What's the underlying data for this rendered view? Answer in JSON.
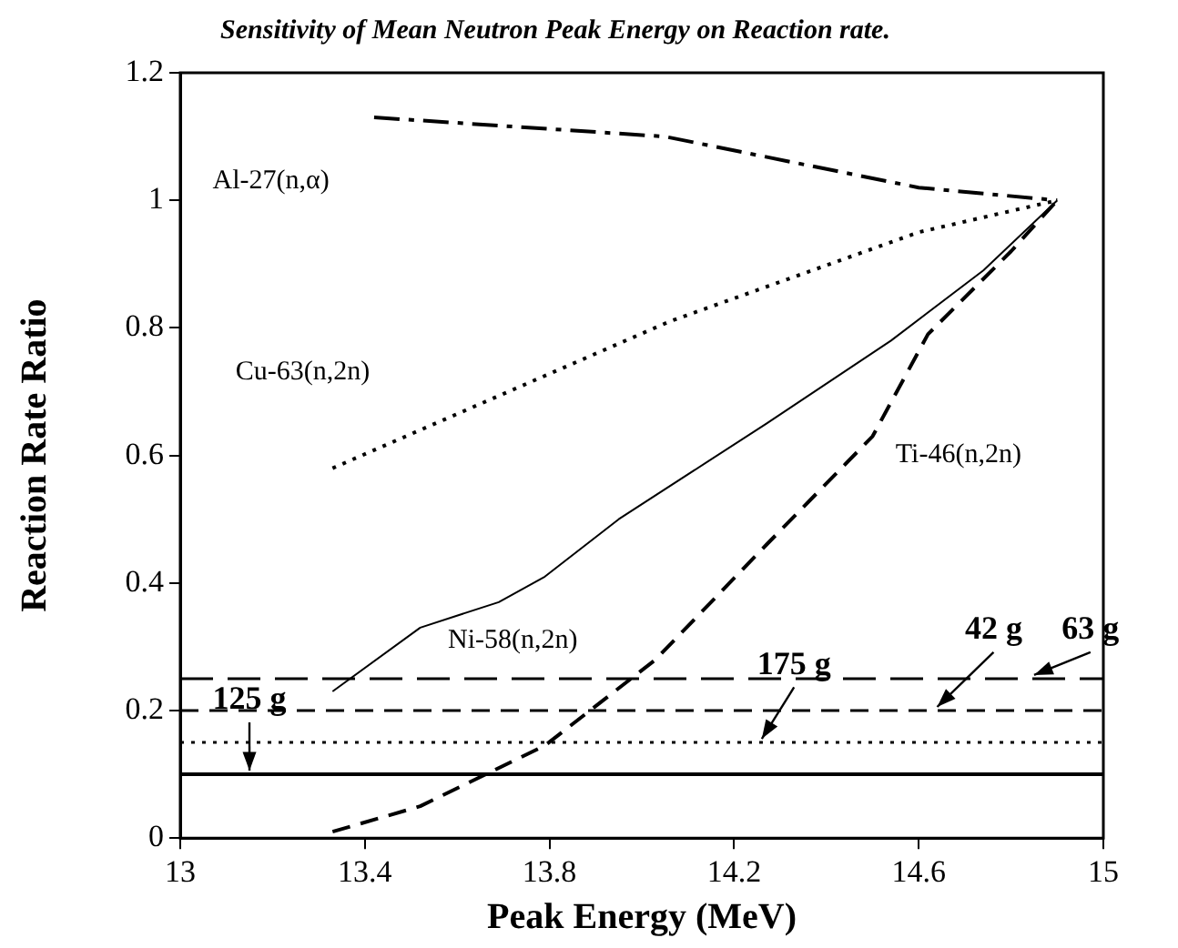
{
  "chart_data": {
    "type": "line",
    "title": "Sensitivity of Mean Neutron Peak Energy on Reaction rate.",
    "xlabel": "Peak Energy (MeV)",
    "ylabel": "Reaction Rate Ratio",
    "xlim": [
      13,
      15
    ],
    "xticks": [
      13,
      13.4,
      13.8,
      14.2,
      14.6,
      15
    ],
    "ylim": [
      0,
      1.2
    ],
    "yticks": [
      0,
      0.2,
      0.4,
      0.6,
      0.8,
      1,
      1.2
    ],
    "grid": false,
    "legend": false,
    "marker": "none",
    "series": [
      {
        "name": "Al-27(n,α)",
        "color": "#000000",
        "line_style": "dashdot",
        "x": [
          13.42,
          14.05,
          14.6,
          14.9
        ],
        "values": [
          1.13,
          1.1,
          1.02,
          1.0
        ]
      },
      {
        "name": "Cu-63(n,2n)",
        "color": "#000000",
        "line_style": "dotted",
        "x": [
          13.33,
          14.06,
          14.6,
          14.9
        ],
        "values": [
          0.58,
          0.81,
          0.95,
          1.0
        ]
      },
      {
        "name": "Ni-58(n,2n)",
        "color": "#000000",
        "line_style": "solid",
        "x": [
          13.33,
          13.52,
          13.69,
          13.79,
          13.95,
          14.27,
          14.54,
          14.74,
          14.9
        ],
        "values": [
          0.23,
          0.33,
          0.37,
          0.41,
          0.5,
          0.65,
          0.78,
          0.89,
          1.0
        ]
      },
      {
        "name": "Ti-46(n,2n)",
        "color": "#000000",
        "line_style": "dashed",
        "x": [
          13.33,
          13.52,
          13.79,
          14.03,
          14.27,
          14.5,
          14.62,
          14.8,
          14.9
        ],
        "values": [
          0.01,
          0.05,
          0.145,
          0.28,
          0.46,
          0.63,
          0.79,
          0.92,
          1.0
        ]
      }
    ],
    "ref_lines": [
      {
        "axis": "y",
        "value": 0.25,
        "label": "63 g",
        "line_style": "longdash",
        "color": "#000000"
      },
      {
        "axis": "y",
        "value": 0.2,
        "label": "42 g",
        "line_style": "dashed",
        "color": "#000000"
      },
      {
        "axis": "y",
        "value": 0.15,
        "label": "175 g",
        "line_style": "dotted",
        "color": "#000000"
      },
      {
        "axis": "y",
        "value": 0.1,
        "label": "125 g",
        "line_style": "solid",
        "color": "#000000"
      }
    ]
  }
}
